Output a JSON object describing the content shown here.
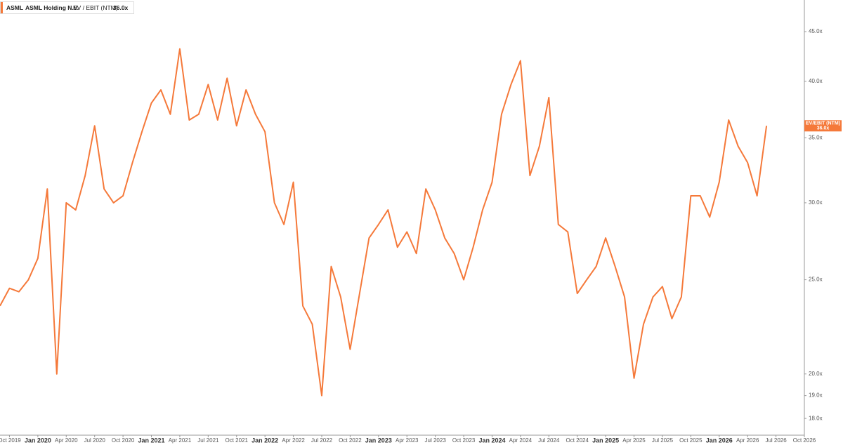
{
  "chart_data": {
    "type": "line",
    "ticker": "ASML",
    "company": "ASML Holding N.V.",
    "marker_label": "EV/EBIT (NTM)",
    "last_value_label": "36.0x",
    "log_scale": true,
    "grid": false,
    "x": [
      "2019-09",
      "2019-10",
      "2019-11",
      "2019-12",
      "2020-01",
      "2020-02",
      "2020-03",
      "2020-04",
      "2020-05",
      "2020-06",
      "2020-07",
      "2020-08",
      "2020-09",
      "2020-10",
      "2020-11",
      "2020-12",
      "2021-01",
      "2021-02",
      "2021-03",
      "2021-04",
      "2021-05",
      "2021-06",
      "2021-07",
      "2021-08",
      "2021-09",
      "2021-10",
      "2021-11",
      "2021-12",
      "2022-01",
      "2022-02",
      "2022-03",
      "2022-04",
      "2022-05",
      "2022-06",
      "2022-07",
      "2022-08",
      "2022-09",
      "2022-10",
      "2022-11",
      "2022-12",
      "2023-01",
      "2023-02",
      "2023-03",
      "2023-04",
      "2023-05",
      "2023-06",
      "2023-07",
      "2023-08",
      "2023-09",
      "2023-10",
      "2023-11",
      "2023-12",
      "2024-01",
      "2024-02",
      "2024-03",
      "2024-04",
      "2024-05",
      "2024-06",
      "2024-07",
      "2024-08",
      "2024-09",
      "2024-10",
      "2024-11",
      "2024-12",
      "2025-01",
      "2025-02",
      "2025-03",
      "2025-04",
      "2025-05",
      "2025-06",
      "2025-07",
      "2025-08",
      "2025-09",
      "2025-10",
      "2025-11",
      "2025-12",
      "2026-01",
      "2026-02",
      "2026-03",
      "2026-04",
      "2026-05",
      "2026-06"
    ],
    "series": [
      {
        "name": "EV / EBIT (NTM)",
        "color": "#f5793a",
        "values": [
          23.5,
          24.5,
          24.3,
          25,
          26.3,
          31,
          20,
          30,
          29.5,
          32,
          36,
          31,
          30,
          30.5,
          33,
          35.5,
          38,
          39.2,
          37,
          43.2,
          36.5,
          37,
          39.7,
          36.5,
          40.3,
          36,
          39.2,
          37,
          35.5,
          30,
          28.5,
          31.5,
          23.5,
          22.5,
          19,
          25.8,
          24,
          21.2,
          24.2,
          27.6,
          28.5,
          29.5,
          27,
          28,
          26.6,
          31,
          29.5,
          27.6,
          26.6,
          25,
          27,
          29.5,
          31.5,
          37,
          39.7,
          42,
          32,
          34.3,
          38.5,
          28.5,
          28,
          24.2,
          25,
          25.8,
          27.6,
          25.8,
          24,
          19.8,
          22.5,
          24,
          24.6,
          22.8,
          24,
          30.5,
          30.5,
          29,
          31.5,
          36.5,
          34.3,
          33,
          30.5,
          36
        ]
      }
    ],
    "xlim": [
      "2019-09",
      "2026-10"
    ],
    "xticks": [
      {
        "value": "2019-10",
        "label": "Oct 2019"
      },
      {
        "value": "2020-01",
        "label": "Jan 2020"
      },
      {
        "value": "2020-04",
        "label": "Apr 2020"
      },
      {
        "value": "2020-07",
        "label": "Jul 2020"
      },
      {
        "value": "2020-10",
        "label": "Oct 2020"
      },
      {
        "value": "2021-01",
        "label": "Jan 2021"
      },
      {
        "value": "2021-04",
        "label": "Apr 2021"
      },
      {
        "value": "2021-07",
        "label": "Jul 2021"
      },
      {
        "value": "2021-10",
        "label": "Oct 2021"
      },
      {
        "value": "2022-01",
        "label": "Jan 2022"
      },
      {
        "value": "2022-04",
        "label": "Apr 2022"
      },
      {
        "value": "2022-07",
        "label": "Jul 2022"
      },
      {
        "value": "2022-10",
        "label": "Oct 2022"
      },
      {
        "value": "2023-01",
        "label": "Jan 2023"
      },
      {
        "value": "2023-04",
        "label": "Apr 2023"
      },
      {
        "value": "2023-07",
        "label": "Jul 2023"
      },
      {
        "value": "2023-10",
        "label": "Oct 2023"
      },
      {
        "value": "2024-01",
        "label": "Jan 2024"
      },
      {
        "value": "2024-04",
        "label": "Apr 2024"
      },
      {
        "value": "2024-07",
        "label": "Jul 2024"
      },
      {
        "value": "2024-10",
        "label": "Oct 2024"
      },
      {
        "value": "2025-01",
        "label": "Jan 2025"
      },
      {
        "value": "2025-04",
        "label": "Apr 2025"
      },
      {
        "value": "2025-07",
        "label": "Jul 2025"
      },
      {
        "value": "2025-10",
        "label": "Oct 2025"
      },
      {
        "value": "2026-01",
        "label": "Jan 2026"
      },
      {
        "value": "2026-04",
        "label": "Apr 2026"
      },
      {
        "value": "2026-07",
        "label": "Jul 2026"
      },
      {
        "value": "2026-10",
        "label": "Oct 2026"
      }
    ],
    "ylim": [
      17.3,
      48.5
    ],
    "yticks": [
      {
        "value": 18,
        "label": "18.0x"
      },
      {
        "value": 19,
        "label": "19.0x"
      },
      {
        "value": 20,
        "label": "20.0x"
      },
      {
        "value": 25,
        "label": "25.0x"
      },
      {
        "value": 30,
        "label": "30.0x"
      },
      {
        "value": 35,
        "label": "35.0x"
      },
      {
        "value": 40,
        "label": "40.0x"
      },
      {
        "value": 45,
        "label": "45.0x"
      }
    ]
  }
}
